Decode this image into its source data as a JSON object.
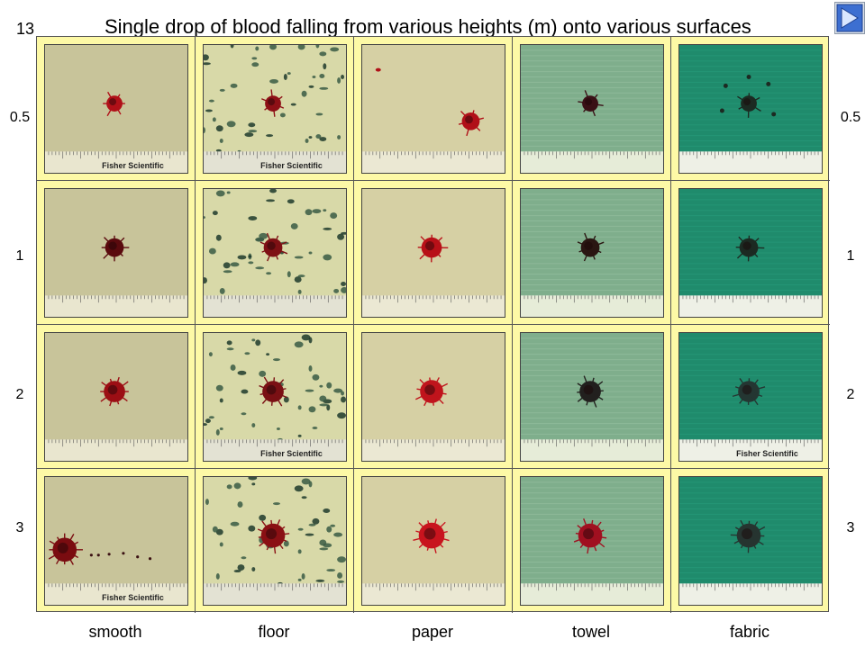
{
  "slide": {
    "number": "13",
    "title": "Single drop of blood falling from various heights (m) onto various surfaces"
  },
  "heights": [
    "0.5",
    "1",
    "2",
    "3"
  ],
  "surfaces": [
    {
      "name": "smooth",
      "bg": "#c8c49a",
      "ruler": "#e9e6cf"
    },
    {
      "name": "floor",
      "bg": "#d8d9a8",
      "ruler": "#e3e2d3"
    },
    {
      "name": "paper",
      "bg": "#d6d0a4",
      "ruler": "#ebe8d3"
    },
    {
      "name": "towel",
      "bg": "#7fae8c",
      "ruler": "#e6ecd8"
    },
    {
      "name": "fabric",
      "bg": "#1f8b6c",
      "ruler": "#eef0e6"
    }
  ],
  "images": [
    [
      {
        "alt": "smooth 0.5 m",
        "ruler_text": "Fisher Scientific",
        "stain": "#b01018"
      },
      {
        "alt": "floor 0.5 m",
        "ruler_text": "Fisher Scientific",
        "stain": "#8e1016"
      },
      {
        "alt": "paper 0.5 m",
        "ruler_text": "",
        "stain": "#b01018"
      },
      {
        "alt": "towel 0.5 m",
        "ruler_text": "",
        "stain": "#3a1016"
      },
      {
        "alt": "fabric 0.5 m",
        "ruler_text": "",
        "stain": "#1c2a22"
      }
    ],
    [
      {
        "alt": "smooth 1 m",
        "ruler_text": "",
        "stain": "#5a0a0e"
      },
      {
        "alt": "floor 1 m",
        "ruler_text": "",
        "stain": "#7e1014"
      },
      {
        "alt": "paper 1 m",
        "ruler_text": "",
        "stain": "#b81018"
      },
      {
        "alt": "towel 1 m",
        "ruler_text": "",
        "stain": "#2a1612"
      },
      {
        "alt": "fabric 1 m",
        "ruler_text": "",
        "stain": "#1c2a22"
      }
    ],
    [
      {
        "alt": "smooth 2 m",
        "ruler_text": "",
        "stain": "#9c0e14"
      },
      {
        "alt": "floor 2 m",
        "ruler_text": "Fisher Scientific",
        "stain": "#7a1014"
      },
      {
        "alt": "paper 2 m",
        "ruler_text": "",
        "stain": "#c0141c"
      },
      {
        "alt": "towel 2 m",
        "ruler_text": "",
        "stain": "#22201e"
      },
      {
        "alt": "fabric 2 m",
        "ruler_text": "Fisher Scientific",
        "stain": "#243632"
      }
    ],
    [
      {
        "alt": "smooth 3 m",
        "ruler_text": "Fisher Scientific",
        "stain": "#7a0c10"
      },
      {
        "alt": "floor 3 m",
        "ruler_text": "",
        "stain": "#8a1014"
      },
      {
        "alt": "paper 3 m",
        "ruler_text": "",
        "stain": "#c8141e"
      },
      {
        "alt": "towel 3 m",
        "ruler_text": "",
        "stain": "#a01020"
      },
      {
        "alt": "fabric 3 m",
        "ruler_text": "",
        "stain": "#263430"
      }
    ]
  ],
  "nav": {
    "icon": "next-slide-icon"
  }
}
